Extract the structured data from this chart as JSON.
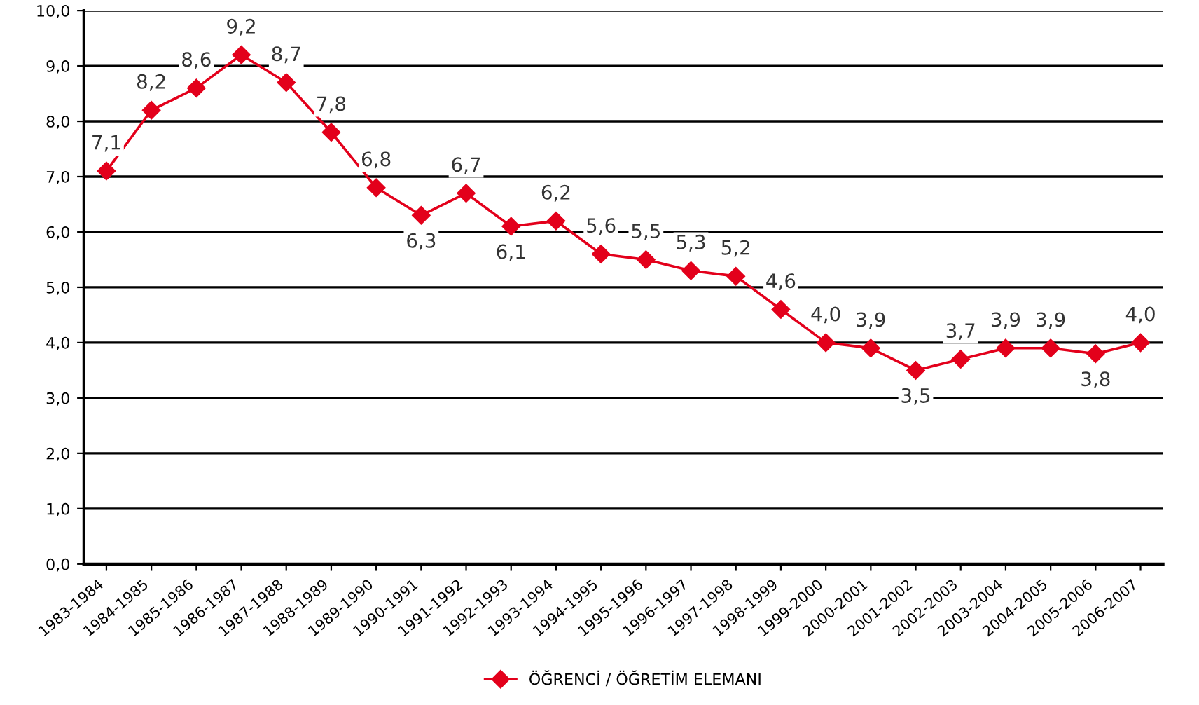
{
  "chart_data": {
    "type": "line",
    "categories": [
      "1983-1984",
      "1984-1985",
      "1985-1986",
      "1986-1987",
      "1987-1988",
      "1988-1989",
      "1989-1990",
      "1990-1991",
      "1991-1992",
      "1992-1993",
      "1993-1994",
      "1994-1995",
      "1995-1996",
      "1996-1997",
      "1997-1998",
      "1998-1999",
      "1999-2000",
      "2000-2001",
      "2001-2002",
      "2002-2003",
      "2003-2004",
      "2004-2005",
      "2005-2006",
      "2006-2007"
    ],
    "series": [
      {
        "name": "ÖĞRENCİ / ÖĞRETİM ELEMANI",
        "color": "#e3001b",
        "values": [
          7.1,
          8.2,
          8.6,
          9.2,
          8.7,
          7.8,
          6.8,
          6.3,
          6.7,
          6.1,
          6.2,
          5.6,
          5.5,
          5.3,
          5.2,
          4.6,
          4.0,
          3.9,
          3.5,
          3.7,
          3.9,
          3.9,
          3.8,
          4.0
        ],
        "value_labels": [
          "7,1",
          "8,2",
          "8,6",
          "9,2",
          "8,7",
          "7,8",
          "6,8",
          "6,3",
          "6,7",
          "6,1",
          "6,2",
          "5,6",
          "5,5",
          "5,3",
          "5,2",
          "4,6",
          "4,0",
          "3,9",
          "3,5",
          "3,7",
          "3,9",
          "3,9",
          "3,8",
          "4,0"
        ]
      }
    ],
    "ylim": [
      0,
      10
    ],
    "yticks": [
      {
        "value": 0,
        "label": "0,0"
      },
      {
        "value": 1,
        "label": "1,0"
      },
      {
        "value": 2,
        "label": "2,0"
      },
      {
        "value": 3,
        "label": "3,0"
      },
      {
        "value": 4,
        "label": "4,0"
      },
      {
        "value": 5,
        "label": "5,0"
      },
      {
        "value": 6,
        "label": "6,0"
      },
      {
        "value": 7,
        "label": "7,0"
      },
      {
        "value": 8,
        "label": "8,0"
      },
      {
        "value": 9,
        "label": "9,0"
      },
      {
        "value": 10,
        "label": "10,0"
      }
    ],
    "grid": "y",
    "legend": "bottom",
    "marker": "diamond",
    "line_style": "solid"
  }
}
